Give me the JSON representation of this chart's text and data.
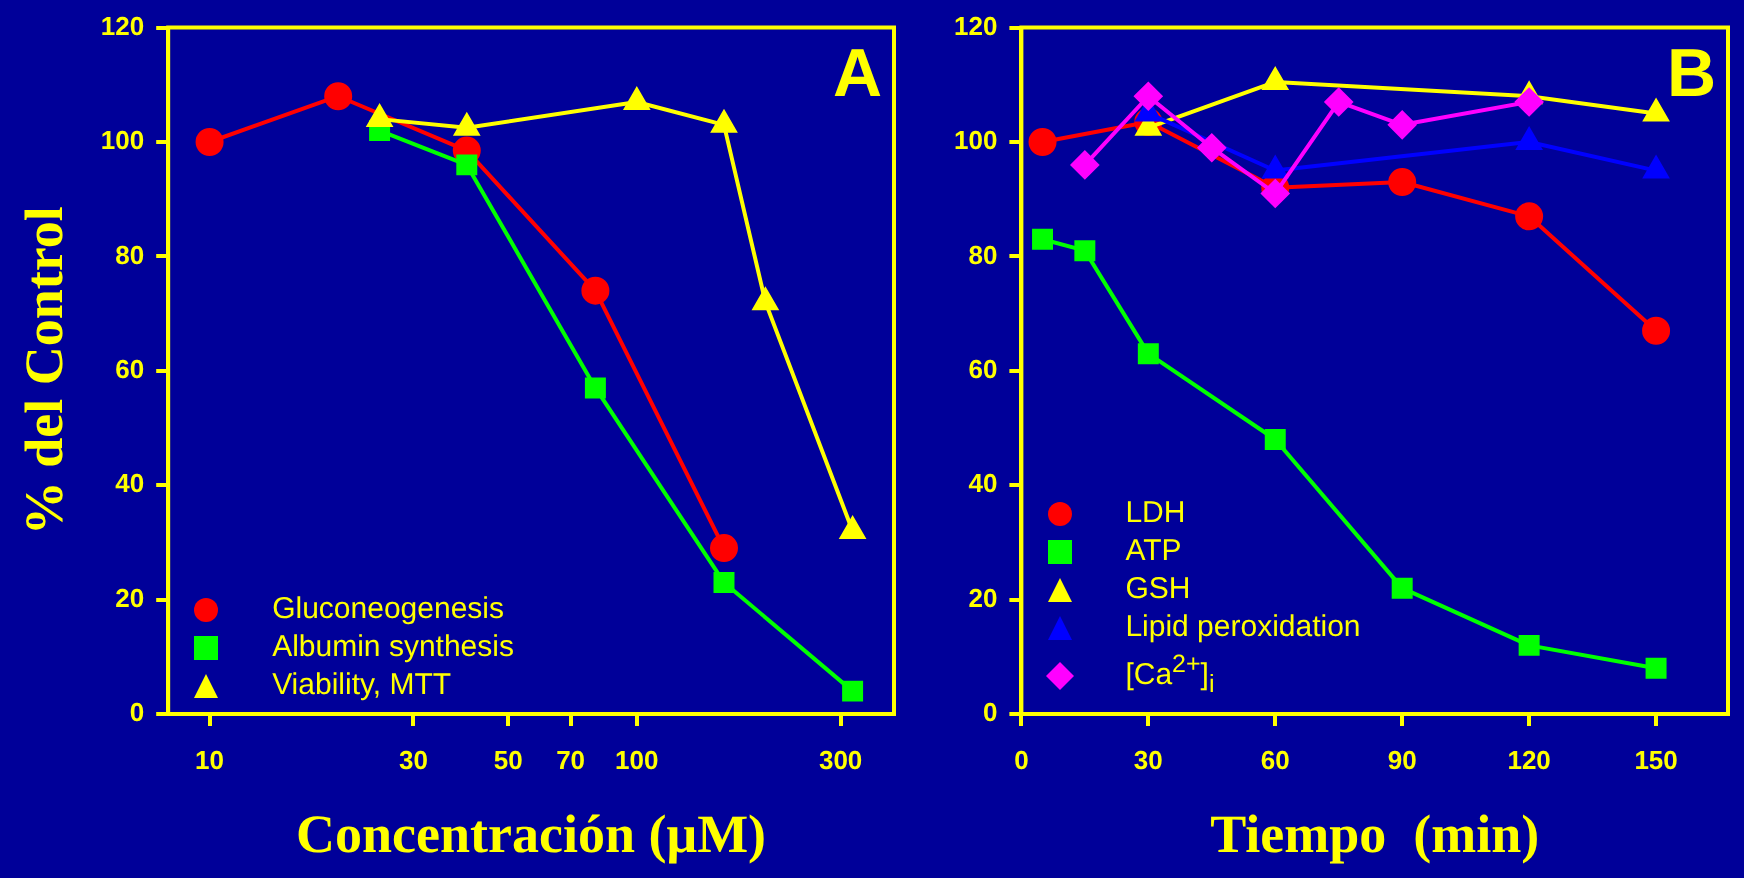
{
  "chart_data": [
    {
      "type": "line",
      "ylabel": "% del Control",
      "xlabel": "Concentración (μM)",
      "annotations": [
        "A"
      ],
      "log": "x",
      "xlim": [
        8,
        400
      ],
      "xticks": [
        10,
        30,
        50,
        70,
        100,
        300
      ],
      "ylim": [
        0,
        120
      ],
      "yticks": [
        0,
        20,
        40,
        60,
        80,
        100,
        120
      ],
      "grid": false,
      "legend": "bottom left",
      "line_style": "solid",
      "series": [
        {
          "name": "Gluconeogenesis",
          "color": "#ff0000",
          "marker": "circle",
          "x": [
            10,
            20,
            40,
            80,
            160
          ],
          "values": [
            100,
            108,
            98.5,
            74,
            29
          ]
        },
        {
          "name": "Albumin synthesis",
          "color": "#00ff00",
          "marker": "square",
          "x": [
            25,
            40,
            80,
            160,
            320
          ],
          "values": [
            102,
            96,
            57,
            23,
            4
          ]
        },
        {
          "name": "Viability, MTT",
          "color": "#ffff00",
          "marker": "triangle",
          "x": [
            25,
            40,
            100,
            160,
            200,
            320
          ],
          "values": [
            104,
            102.5,
            107,
            103,
            72,
            32
          ]
        }
      ]
    },
    {
      "type": "line",
      "xlabel": "Tiempo  (min)",
      "annotations": [
        "B"
      ],
      "xlim": [
        0,
        167
      ],
      "xticks": [
        0,
        30,
        60,
        90,
        120,
        150
      ],
      "ylim": [
        0,
        120
      ],
      "yticks": [
        0,
        20,
        40,
        60,
        80,
        100,
        120
      ],
      "grid": false,
      "legend": "bottom left",
      "line_style": "solid",
      "series": [
        {
          "name": "LDH",
          "color": "#ff0000",
          "marker": "circle",
          "x": [
            5,
            30,
            60,
            90,
            120,
            150
          ],
          "values": [
            100,
            103.5,
            92,
            93,
            87,
            67
          ]
        },
        {
          "name": "ATP",
          "color": "#00ff00",
          "marker": "square",
          "x": [
            5,
            15,
            30,
            60,
            90,
            120,
            150
          ],
          "values": [
            83,
            81,
            63,
            48,
            22,
            12,
            8
          ]
        },
        {
          "name": "GSH",
          "color": "#ffff00",
          "marker": "triangle",
          "x": [
            30,
            60,
            120,
            150
          ],
          "values": [
            102.5,
            110.5,
            108,
            105
          ]
        },
        {
          "name": "Lipid peroxidation",
          "color": "#0000ff",
          "marker": "triangle",
          "x": [
            30,
            60,
            120,
            150
          ],
          "values": [
            105,
            95,
            100,
            95
          ]
        },
        {
          "name": "[Ca$^{2+}$]$_{i}$",
          "color": "#ff00ff",
          "marker": "diamond",
          "x": [
            15,
            30,
            45,
            60,
            75,
            90,
            120
          ],
          "values": [
            96,
            108,
            99,
            91,
            107,
            103,
            107
          ]
        }
      ]
    }
  ]
}
